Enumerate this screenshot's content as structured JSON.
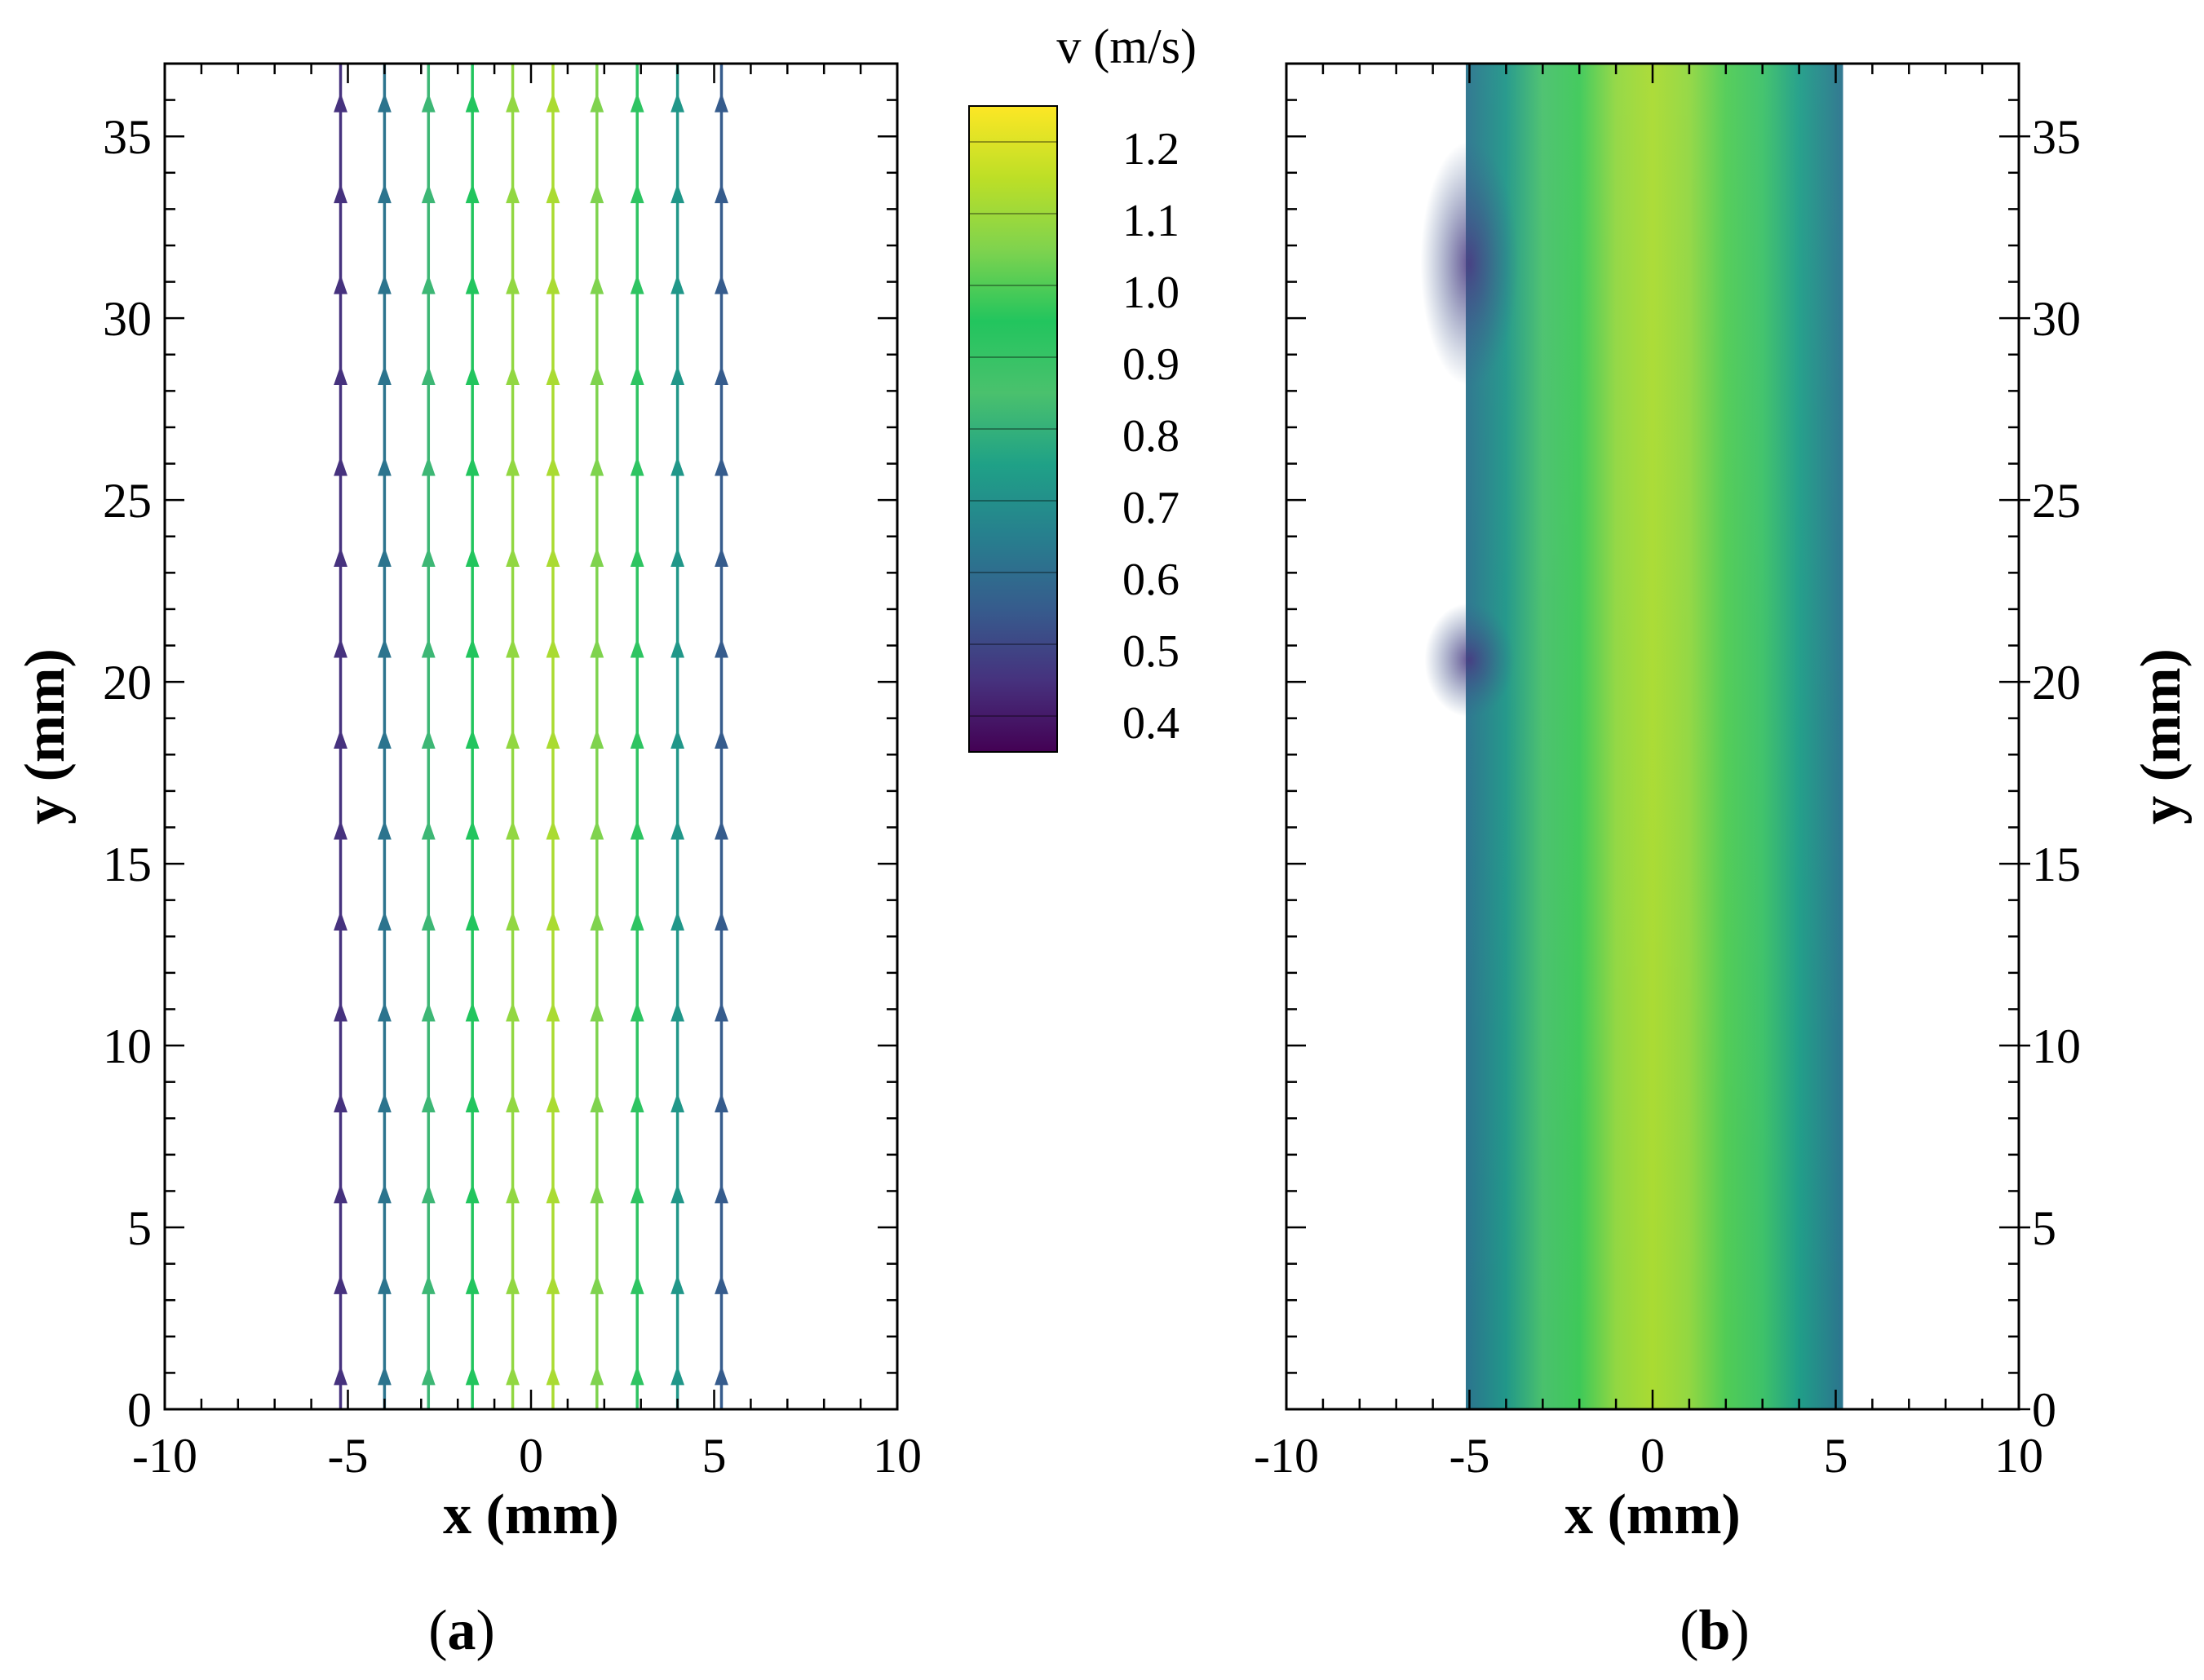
{
  "figure": {
    "panel_a_caption": {
      "open": "(",
      "letter": "a",
      "close": ")"
    },
    "panel_b_caption": {
      "open": "(",
      "letter": "b",
      "close": ")"
    }
  },
  "colorbar": {
    "title": "v (m/s)",
    "levels": [
      0.4,
      0.5,
      0.6,
      0.7,
      0.8,
      0.9,
      1.0,
      1.1,
      1.2
    ],
    "tick_labels": [
      "0.4",
      "0.5",
      "0.6",
      "0.7",
      "0.8",
      "0.9",
      "1.0",
      "1.1",
      "1.2"
    ],
    "range": [
      0.35,
      1.25
    ],
    "colors": {
      "0.35": "#440154",
      "0.45": "#46327e",
      "0.55": "#365c8d",
      "0.65": "#277f8e",
      "0.75": "#1fa187",
      "0.85": "#4ac16d",
      "0.95": "#22c55e",
      "1.05": "#7fd34e",
      "1.15": "#bddf26",
      "1.25": "#fde725"
    }
  },
  "chart_data": [
    {
      "type": "quiver",
      "panel": "a",
      "title": "",
      "xlabel": "x (mm)",
      "ylabel": "y (mm)",
      "xlim": [
        -10,
        10
      ],
      "ylim": [
        0,
        37
      ],
      "xticks": [
        -10,
        -5,
        0,
        5,
        10
      ],
      "xtick_labels": [
        "-10",
        "-5",
        "0",
        "5",
        "10"
      ],
      "yticks": [
        0,
        5,
        10,
        15,
        20,
        25,
        30,
        35
      ],
      "ytick_labels": [
        "0",
        "5",
        "10",
        "15",
        "20",
        "25",
        "30",
        "35"
      ],
      "vector_columns_x": [
        -5.2,
        -4.0,
        -2.8,
        -1.6,
        -0.5,
        0.6,
        1.8,
        2.9,
        4.0,
        5.2
      ],
      "vector_rows_y": [
        1,
        3.5,
        6,
        8.5,
        11,
        13.5,
        16,
        18.5,
        21,
        23.5,
        26,
        28.5,
        31,
        33.5,
        36
      ],
      "column_speed_mps": [
        0.45,
        0.62,
        0.82,
        0.95,
        1.08,
        1.12,
        1.05,
        0.92,
        0.72,
        0.55
      ],
      "direction": "upward (+y)"
    },
    {
      "type": "heatmap",
      "panel": "b",
      "title": "",
      "xlabel": "x (mm)",
      "ylabel": "y (mm)",
      "xlim": [
        -10,
        10
      ],
      "ylim": [
        0,
        37
      ],
      "xticks": [
        -10,
        -5,
        0,
        5,
        10
      ],
      "xtick_labels": [
        "-10",
        "-5",
        "0",
        "5",
        "10"
      ],
      "yticks": [
        0,
        5,
        10,
        15,
        20,
        25,
        30,
        35
      ],
      "ytick_labels": [
        "0",
        "5",
        "10",
        "15",
        "20",
        "25",
        "30",
        "35"
      ],
      "y_axis_side": "right",
      "field_x_range": [
        -5.1,
        5.2
      ],
      "profile_x": [
        -5.1,
        -4.0,
        -3.0,
        -2.0,
        -1.0,
        0.0,
        1.0,
        2.0,
        3.0,
        4.0,
        5.2
      ],
      "profile_v_mps": [
        0.62,
        0.72,
        0.85,
        0.98,
        1.08,
        1.12,
        1.08,
        1.0,
        0.88,
        0.74,
        0.62
      ],
      "note": "v field: high-speed core near x≈0, low-speed edges; local minimum near x=-5, y≈20.5 and y≈32"
    }
  ]
}
